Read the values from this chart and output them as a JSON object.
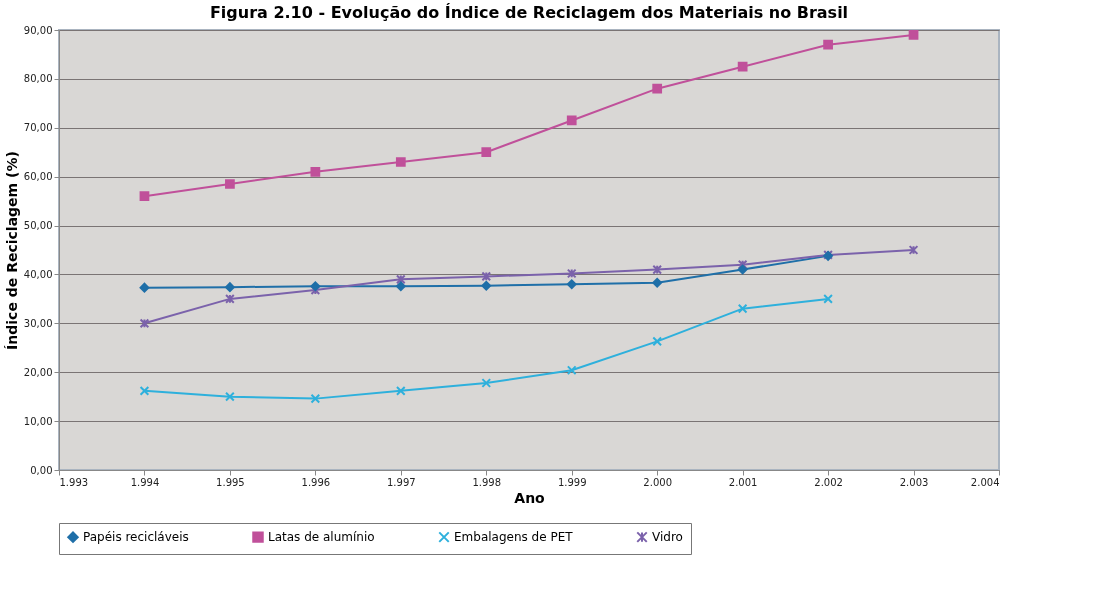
{
  "chart_data": {
    "type": "line",
    "title": "Figura 2.10 - Evolução do Índice de Reciclagem dos Materiais no Brasil",
    "xlabel": "Ano",
    "ylabel": "Índice de Reciclagem (%)",
    "x": [
      1994,
      1995,
      1996,
      1997,
      1998,
      1999,
      2000,
      2001,
      2002,
      2003
    ],
    "xlim": [
      1993,
      2004
    ],
    "xticks": [
      {
        "value": 1993,
        "label": "1.993"
      },
      {
        "value": 1994,
        "label": "1.994"
      },
      {
        "value": 1995,
        "label": "1.995"
      },
      {
        "value": 1996,
        "label": "1.996"
      },
      {
        "value": 1997,
        "label": "1.997"
      },
      {
        "value": 1998,
        "label": "1.998"
      },
      {
        "value": 1999,
        "label": "1.999"
      },
      {
        "value": 2000,
        "label": "2.000"
      },
      {
        "value": 2001,
        "label": "2.001"
      },
      {
        "value": 2002,
        "label": "2.002"
      },
      {
        "value": 2003,
        "label": "2.003"
      },
      {
        "value": 2004,
        "label": "2.004"
      }
    ],
    "ylim": [
      0,
      90
    ],
    "yticks": [
      {
        "value": 0,
        "label": "0,00"
      },
      {
        "value": 10,
        "label": "10,00"
      },
      {
        "value": 20,
        "label": "20,00"
      },
      {
        "value": 30,
        "label": "30,00"
      },
      {
        "value": 40,
        "label": "40,00"
      },
      {
        "value": 50,
        "label": "50,00"
      },
      {
        "value": 60,
        "label": "60,00"
      },
      {
        "value": 70,
        "label": "70,00"
      },
      {
        "value": 80,
        "label": "80,00"
      },
      {
        "value": 90,
        "label": "90,00"
      }
    ],
    "grid": "y",
    "legend": "bottom",
    "line_style": "solid",
    "series": [
      {
        "name": "Papéis recicláveis",
        "color": "#1f6fa8",
        "marker": "diamond",
        "values": [
          37.3,
          37.4,
          37.6,
          37.6,
          37.7,
          38,
          38.3,
          41,
          43.8,
          null
        ]
      },
      {
        "name": "Latas de alumínio",
        "color": "#c0509a",
        "marker": "square",
        "values": [
          56,
          58.5,
          61,
          63,
          65,
          71.5,
          78,
          82.5,
          87,
          89
        ]
      },
      {
        "name": "Embalagens de PET",
        "color": "#2eb0dc",
        "marker": "cross",
        "values": [
          16.2,
          15,
          14.6,
          16.2,
          17.8,
          20.4,
          26.3,
          33,
          35,
          null
        ]
      },
      {
        "name": "Vidro",
        "color": "#7b62ab",
        "marker": "cross",
        "values": [
          30,
          35,
          36.8,
          39,
          39.6,
          40.2,
          41,
          42,
          44,
          45
        ]
      }
    ]
  }
}
